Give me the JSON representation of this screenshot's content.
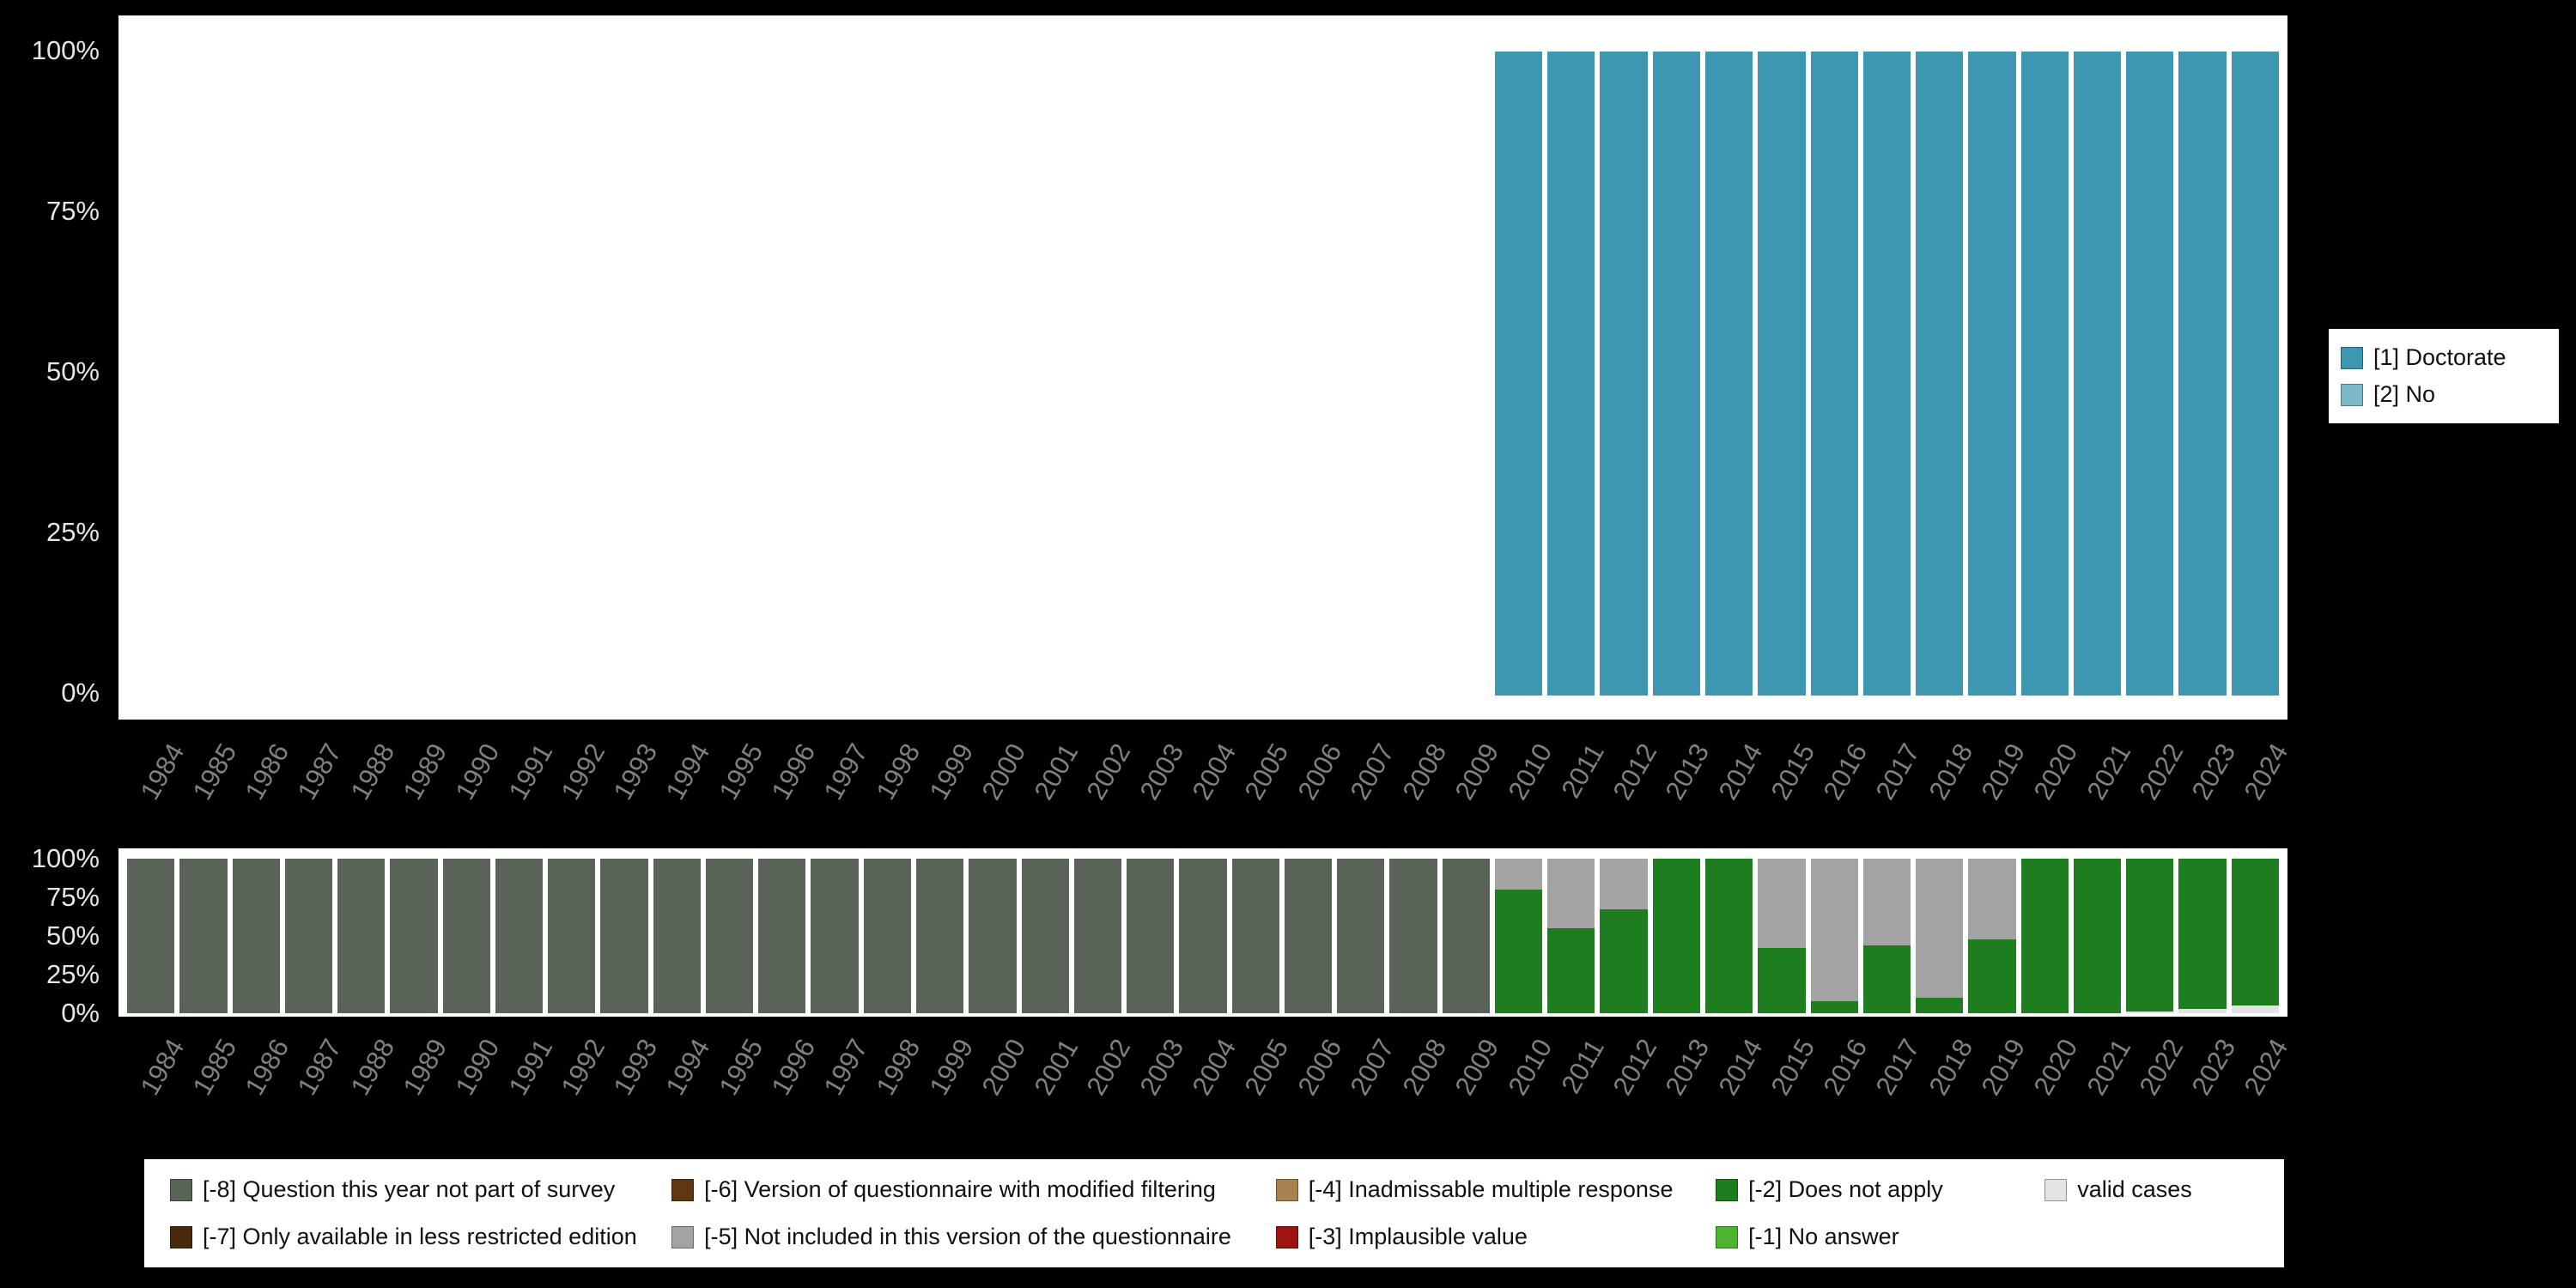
{
  "page": {
    "background_color": "#000000",
    "panel_color": "#ffffff",
    "axis_text_color": "#e6e6e6",
    "year_text_color": "#808080"
  },
  "axes": {
    "y_tick_labels": [
      "100%",
      "75%",
      "50%",
      "25%",
      "0%"
    ]
  },
  "legend_values": {
    "items": [
      {
        "label": "[1] Doctorate",
        "color": "#3d97b0"
      },
      {
        "label": "[2] No",
        "color": "#7cb9c9"
      }
    ]
  },
  "legend_missing": {
    "items": [
      {
        "label": "[-8] Question this year not part of survey",
        "color": "#5a6357"
      },
      {
        "label": "[-7] Only available in less restricted edition",
        "color": "#4a2a0e"
      },
      {
        "label": "[-6] Version of questionnaire with modified filtering",
        "color": "#5f3813"
      },
      {
        "label": "[-5] Not included in this version of the questionnaire",
        "color": "#a3a3a3"
      },
      {
        "label": "[-4] Inadmissable multiple response",
        "color": "#a5824f"
      },
      {
        "label": "[-3] Implausible value",
        "color": "#a01410"
      },
      {
        "label": "[-2] Does not apply",
        "color": "#1e7d1e"
      },
      {
        "label": "[-1] No answer",
        "color": "#4db42e"
      },
      {
        "label": "valid cases",
        "color": "#e3e3e3"
      }
    ]
  },
  "chart_data": [
    {
      "id": "values-distribution",
      "type": "bar",
      "stacked": true,
      "title": "",
      "xlabel": "",
      "ylabel": "",
      "ylim": [
        0,
        100
      ],
      "grid": false,
      "legend_position": "right",
      "y_ticks": [
        "100%",
        "75%",
        "50%",
        "25%",
        "0%"
      ],
      "categories": [
        "1984",
        "1985",
        "1986",
        "1987",
        "1988",
        "1989",
        "1990",
        "1991",
        "1992",
        "1993",
        "1994",
        "1995",
        "1996",
        "1997",
        "1998",
        "1999",
        "2000",
        "2001",
        "2002",
        "2003",
        "2004",
        "2005",
        "2006",
        "2007",
        "2008",
        "2009",
        "2010",
        "2011",
        "2012",
        "2013",
        "2014",
        "2015",
        "2016",
        "2017",
        "2018",
        "2019",
        "2020",
        "2021",
        "2022",
        "2023",
        "2024"
      ],
      "series": [
        {
          "name": "[1] Doctorate",
          "color": "#3d97b0",
          "values": [
            0,
            0,
            0,
            0,
            0,
            0,
            0,
            0,
            0,
            0,
            0,
            0,
            0,
            0,
            0,
            0,
            0,
            0,
            0,
            0,
            0,
            0,
            0,
            0,
            0,
            0,
            100,
            100,
            100,
            100,
            100,
            100,
            100,
            100,
            100,
            100,
            100,
            100,
            100,
            100,
            100
          ]
        },
        {
          "name": "[2] No",
          "color": "#7cb9c9",
          "values": [
            0,
            0,
            0,
            0,
            0,
            0,
            0,
            0,
            0,
            0,
            0,
            0,
            0,
            0,
            0,
            0,
            0,
            0,
            0,
            0,
            0,
            0,
            0,
            0,
            0,
            0,
            0,
            0,
            0,
            0,
            0,
            0,
            0,
            0,
            0,
            0,
            0,
            0,
            0,
            0,
            0
          ]
        }
      ]
    },
    {
      "id": "missing-values",
      "type": "bar",
      "stacked": true,
      "title": "",
      "xlabel": "",
      "ylabel": "",
      "ylim": [
        0,
        100
      ],
      "grid": false,
      "legend_position": "bottom",
      "y_ticks": [
        "100%",
        "75%",
        "50%",
        "25%",
        "0%"
      ],
      "categories": [
        "1984",
        "1985",
        "1986",
        "1987",
        "1988",
        "1989",
        "1990",
        "1991",
        "1992",
        "1993",
        "1994",
        "1995",
        "1996",
        "1997",
        "1998",
        "1999",
        "2000",
        "2001",
        "2002",
        "2003",
        "2004",
        "2005",
        "2006",
        "2007",
        "2008",
        "2009",
        "2010",
        "2011",
        "2012",
        "2013",
        "2014",
        "2015",
        "2016",
        "2017",
        "2018",
        "2019",
        "2020",
        "2021",
        "2022",
        "2023",
        "2024"
      ],
      "series": [
        {
          "name": "valid cases",
          "color": "#e3e3e3",
          "values": [
            0,
            0,
            0,
            0,
            0,
            0,
            0,
            0,
            0,
            0,
            0,
            0,
            0,
            0,
            0,
            0,
            0,
            0,
            0,
            0,
            0,
            0,
            0,
            0,
            0,
            0,
            0,
            0,
            0,
            0,
            0,
            0,
            0,
            0,
            0,
            0,
            0,
            0,
            1,
            3,
            5
          ]
        },
        {
          "name": "[-1] No answer",
          "color": "#4db42e",
          "values": [
            0,
            0,
            0,
            0,
            0,
            0,
            0,
            0,
            0,
            0,
            0,
            0,
            0,
            0,
            0,
            0,
            0,
            0,
            0,
            0,
            0,
            0,
            0,
            0,
            0,
            0,
            0,
            0,
            0,
            0,
            0,
            0,
            0,
            0,
            0,
            0,
            0,
            0,
            0,
            0,
            0
          ]
        },
        {
          "name": "[-2] Does not apply",
          "color": "#1e7d1e",
          "values": [
            0,
            0,
            0,
            0,
            0,
            0,
            0,
            0,
            0,
            0,
            0,
            0,
            0,
            0,
            0,
            0,
            0,
            0,
            0,
            0,
            0,
            0,
            0,
            0,
            0,
            0,
            80,
            55,
            67,
            100,
            100,
            42,
            8,
            44,
            10,
            48,
            100,
            100,
            99,
            97,
            95
          ]
        },
        {
          "name": "[-3] Implausible value",
          "color": "#a01410",
          "values": [
            0,
            0,
            0,
            0,
            0,
            0,
            0,
            0,
            0,
            0,
            0,
            0,
            0,
            0,
            0,
            0,
            0,
            0,
            0,
            0,
            0,
            0,
            0,
            0,
            0,
            0,
            0,
            0,
            0,
            0,
            0,
            0,
            0,
            0,
            0,
            0,
            0,
            0,
            0,
            0,
            0
          ]
        },
        {
          "name": "[-4] Inadmissable multiple response",
          "color": "#a5824f",
          "values": [
            0,
            0,
            0,
            0,
            0,
            0,
            0,
            0,
            0,
            0,
            0,
            0,
            0,
            0,
            0,
            0,
            0,
            0,
            0,
            0,
            0,
            0,
            0,
            0,
            0,
            0,
            0,
            0,
            0,
            0,
            0,
            0,
            0,
            0,
            0,
            0,
            0,
            0,
            0,
            0,
            0
          ]
        },
        {
          "name": "[-5] Not included in this version of the questionnaire",
          "color": "#a3a3a3",
          "values": [
            0,
            0,
            0,
            0,
            0,
            0,
            0,
            0,
            0,
            0,
            0,
            0,
            0,
            0,
            0,
            0,
            0,
            0,
            0,
            0,
            0,
            0,
            0,
            0,
            0,
            0,
            20,
            45,
            33,
            0,
            0,
            58,
            92,
            56,
            90,
            52,
            0,
            0,
            0,
            0,
            0
          ]
        },
        {
          "name": "[-6] Version of questionnaire with modified filtering",
          "color": "#5f3813",
          "values": [
            0,
            0,
            0,
            0,
            0,
            0,
            0,
            0,
            0,
            0,
            0,
            0,
            0,
            0,
            0,
            0,
            0,
            0,
            0,
            0,
            0,
            0,
            0,
            0,
            0,
            0,
            0,
            0,
            0,
            0,
            0,
            0,
            0,
            0,
            0,
            0,
            0,
            0,
            0,
            0,
            0
          ]
        },
        {
          "name": "[-7] Only available in less restricted edition",
          "color": "#4a2a0e",
          "values": [
            0,
            0,
            0,
            0,
            0,
            0,
            0,
            0,
            0,
            0,
            0,
            0,
            0,
            0,
            0,
            0,
            0,
            0,
            0,
            0,
            0,
            0,
            0,
            0,
            0,
            0,
            0,
            0,
            0,
            0,
            0,
            0,
            0,
            0,
            0,
            0,
            0,
            0,
            0,
            0,
            0
          ]
        },
        {
          "name": "[-8] Question this year not part of survey",
          "color": "#5a6357",
          "values": [
            100,
            100,
            100,
            100,
            100,
            100,
            100,
            100,
            100,
            100,
            100,
            100,
            100,
            100,
            100,
            100,
            100,
            100,
            100,
            100,
            100,
            100,
            100,
            100,
            100,
            100,
            0,
            0,
            0,
            0,
            0,
            0,
            0,
            0,
            0,
            0,
            0,
            0,
            0,
            0,
            0
          ]
        }
      ]
    }
  ]
}
